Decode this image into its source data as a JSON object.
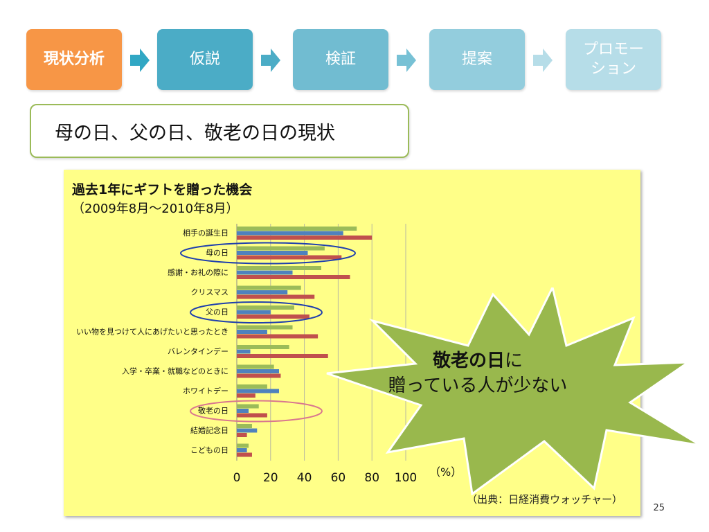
{
  "steps": [
    {
      "label_lines": [
        "現状分析"
      ],
      "color": "#f79646",
      "active": true
    },
    {
      "label_lines": [
        "仮説"
      ],
      "color": "#4bacc6",
      "active": false
    },
    {
      "label_lines": [
        "検証"
      ],
      "color": "#71bcd1",
      "active": false
    },
    {
      "label_lines": [
        "提案"
      ],
      "color": "#93cddd",
      "active": false
    },
    {
      "label_lines": [
        "プロモー",
        "ション"
      ],
      "color": "#b6dde8",
      "active": false
    }
  ],
  "topic": "母の日、父の日、敬老の日の現状",
  "chart_data": {
    "type": "bar",
    "orientation": "horizontal",
    "title": "過去1年にギフトを贈った機会",
    "subtitle": "（2009年8月～2010年8月）",
    "unit_label": "（%）",
    "categories": [
      "相手の誕生日",
      "母の日",
      "感謝・お礼の際に",
      "クリスマス",
      "父の日",
      "いい物を見つけて人にあげたいと思ったとき",
      "バレンタインデー",
      "入学・卒業・就職などのときに",
      "ホワイトデー",
      "敬老の日",
      "結婚記念日",
      "こどもの日"
    ],
    "series": [
      {
        "color": "#9bbb59",
        "values": [
          71,
          52,
          50,
          38,
          34,
          33,
          31,
          22,
          18,
          13,
          9,
          7
        ]
      },
      {
        "color": "#4f81bd",
        "values": [
          63,
          42,
          33,
          30,
          20,
          18,
          8,
          25,
          25,
          7,
          12,
          6
        ]
      },
      {
        "color": "#c0504d",
        "values": [
          80,
          62,
          67,
          46,
          43,
          48,
          54,
          26,
          11,
          18,
          6,
          9
        ]
      }
    ],
    "xlim": [
      0,
      100
    ],
    "xticks": [
      "0",
      "20",
      "40",
      "60",
      "80",
      "100"
    ],
    "grid": true,
    "highlighted": [
      {
        "category": "母の日",
        "color": "#1f3fae"
      },
      {
        "category": "父の日",
        "color": "#1f3fae"
      },
      {
        "category": "敬老の日",
        "color": "#d9778f"
      }
    ]
  },
  "source": "（出典：日経消費ウォッチャー）",
  "callout": {
    "strong": "敬老の日",
    "rest": "に",
    "line2": "贈っている人が少ない",
    "fill": "#99b84d"
  },
  "page_number": "25"
}
